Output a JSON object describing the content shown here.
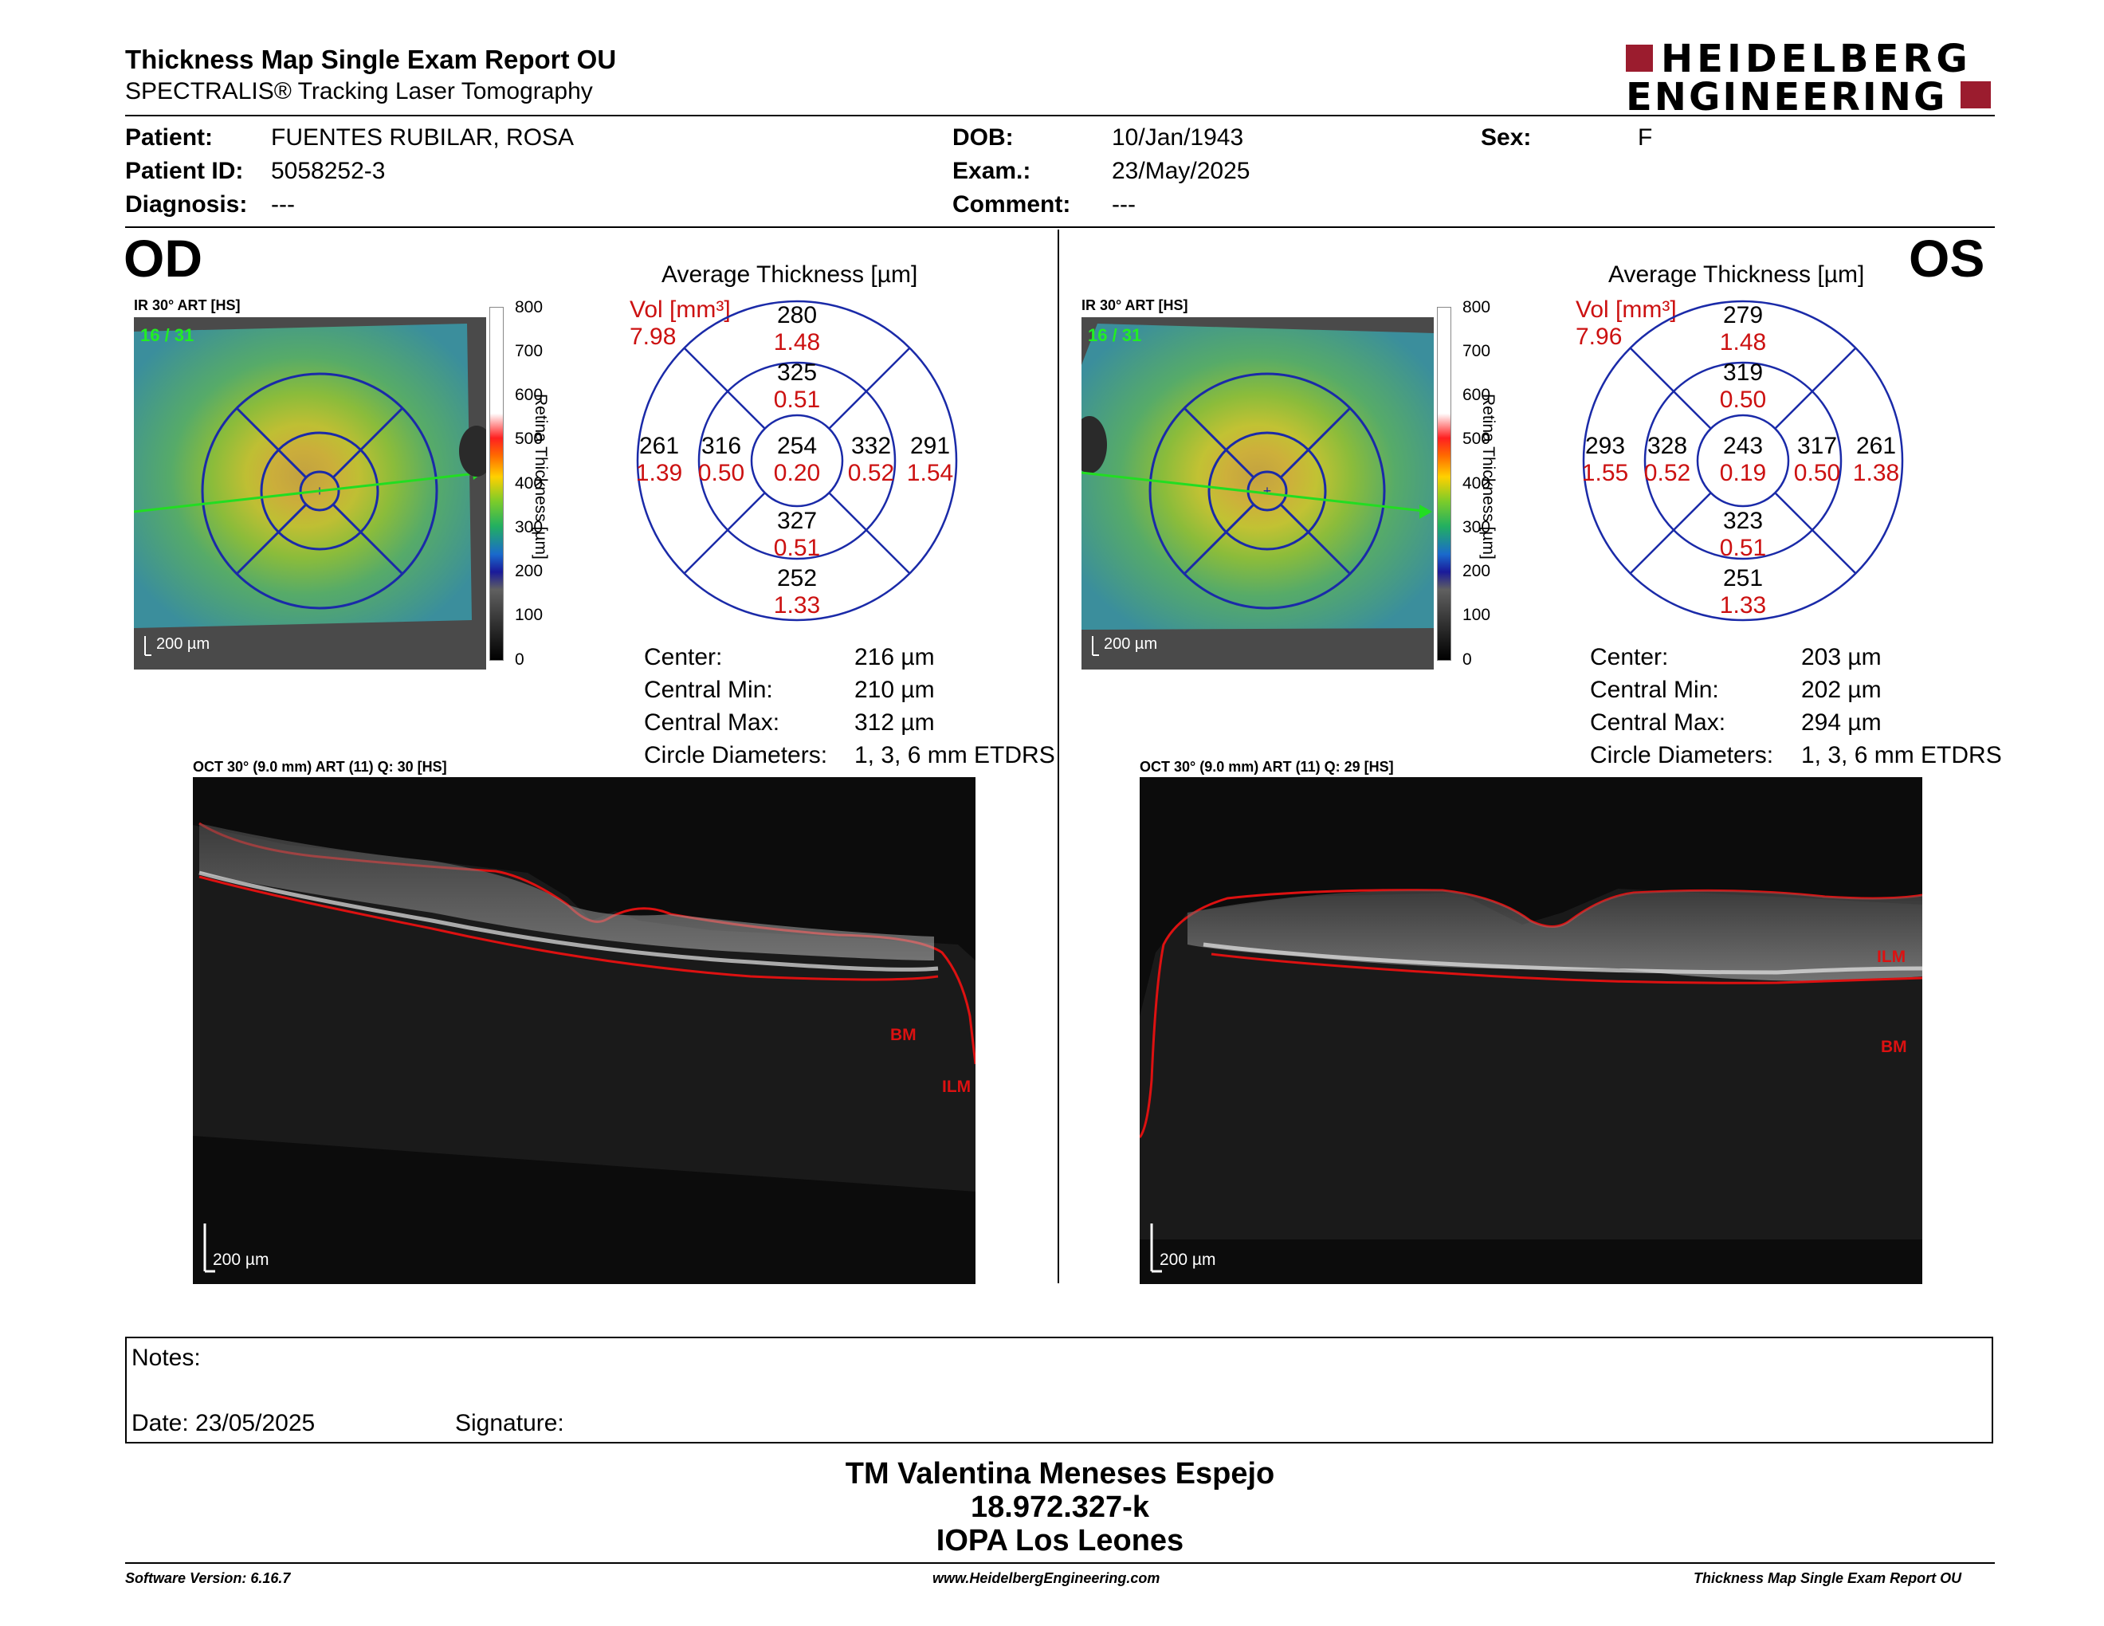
{
  "header": {
    "title": "Thickness Map Single Exam Report OU",
    "subtitle": "SPECTRALIS® Tracking Laser Tomography",
    "logo_line1": "HEIDELBERG",
    "logo_line2": "ENGINEERING",
    "brand_color": "#9b1c2e"
  },
  "patient": {
    "patient_label": "Patient:",
    "patient_value": "FUENTES RUBILAR, ROSA",
    "id_label": "Patient ID:",
    "id_value": "5058252-3",
    "diagnosis_label": "Diagnosis:",
    "diagnosis_value": "---",
    "dob_label": "DOB:",
    "dob_value": "10/Jan/1943",
    "exam_label": "Exam.:",
    "exam_value": "23/May/2025",
    "comment_label": "Comment:",
    "comment_value": "---",
    "sex_label": "Sex:",
    "sex_value": "F"
  },
  "od": {
    "eye": "OD",
    "map_caption": "IR 30° ART [HS]",
    "frame_count": "16 / 31",
    "scale_bar": "200 µm",
    "colorbar_ticks": [
      "800",
      "700",
      "600",
      "500",
      "400",
      "300",
      "200",
      "100",
      "0"
    ],
    "colorbar_label": "Retina Thickness [µm]",
    "avg_title": "Average Thickness [µm]",
    "vol_label": "Vol [mm³]",
    "vol_total": "7.98",
    "sectors": {
      "outer_sup": [
        "280",
        "1.48"
      ],
      "inner_sup": [
        "325",
        "0.51"
      ],
      "outer_temp": [
        "261",
        "1.39"
      ],
      "inner_temp": [
        "316",
        "0.50"
      ],
      "center": [
        "254",
        "0.20"
      ],
      "inner_nas": [
        "332",
        "0.52"
      ],
      "outer_nas": [
        "291",
        "1.54"
      ],
      "inner_inf": [
        "327",
        "0.51"
      ],
      "outer_inf": [
        "252",
        "1.33"
      ]
    },
    "stats": {
      "center_label": "Center:",
      "center_value": "216 µm",
      "min_label": "Central Min:",
      "min_value": "210 µm",
      "max_label": "Central Max:",
      "max_value": "312 µm",
      "diam_label": "Circle Diameters:",
      "diam_value": "1, 3, 6 mm ETDRS"
    },
    "oct_caption": "OCT 30° (9.0 mm) ART (11) Q: 30 [HS]",
    "oct_scale": "200 µm",
    "label_bm": "BM",
    "label_ilm": "ILM"
  },
  "os": {
    "eye": "OS",
    "map_caption": "IR 30° ART [HS]",
    "frame_count": "16 / 31",
    "scale_bar": "200 µm",
    "colorbar_ticks": [
      "800",
      "700",
      "600",
      "500",
      "400",
      "300",
      "200",
      "100",
      "0"
    ],
    "colorbar_label": "Retina Thickness [µm]",
    "avg_title": "Average Thickness [µm]",
    "vol_label": "Vol [mm³]",
    "vol_total": "7.96",
    "sectors": {
      "outer_sup": [
        "279",
        "1.48"
      ],
      "inner_sup": [
        "319",
        "0.50"
      ],
      "outer_temp": [
        "293",
        "1.55"
      ],
      "inner_temp": [
        "328",
        "0.52"
      ],
      "center": [
        "243",
        "0.19"
      ],
      "inner_nas": [
        "317",
        "0.50"
      ],
      "outer_nas": [
        "261",
        "1.38"
      ],
      "inner_inf": [
        "323",
        "0.51"
      ],
      "outer_inf": [
        "251",
        "1.33"
      ]
    },
    "stats": {
      "center_label": "Center:",
      "center_value": "203 µm",
      "min_label": "Central Min:",
      "min_value": "202 µm",
      "max_label": "Central Max:",
      "max_value": "294 µm",
      "diam_label": "Circle Diameters:",
      "diam_value": "1, 3, 6 mm ETDRS"
    },
    "oct_caption": "OCT 30° (9.0 mm) ART (11) Q: 29 [HS]",
    "oct_scale": "200 µm",
    "label_bm": "BM",
    "label_ilm": "ILM"
  },
  "notes": {
    "notes_label": "Notes:",
    "date_label": "Date: 23/05/2025",
    "signature_label": "Signature:"
  },
  "signer": {
    "name": "TM Valentina Meneses Espejo",
    "rut": "18.972.327-k",
    "institution": "IOPA Los Leones"
  },
  "footer": {
    "software": "Software Version: 6.16.7",
    "website": "www.HeidelbergEngineering.com",
    "report": "Thickness Map Single Exam Report OU"
  }
}
